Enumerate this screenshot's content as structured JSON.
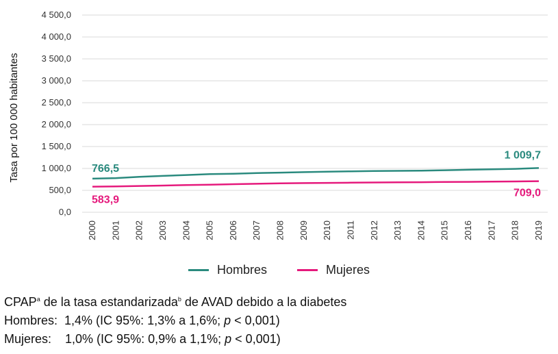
{
  "chart_data": {
    "type": "line",
    "ylabel": "Tasa por 100 000 habitantes",
    "xlabel": "",
    "ylim": [
      0,
      4500
    ],
    "yticks": [
      "0,0",
      "500,0",
      "1 000,0",
      "1 500,0",
      "2 000,0",
      "2 500,0",
      "3 000,0",
      "3 500,0",
      "4 000,0",
      "4 500,0"
    ],
    "categories": [
      "2000",
      "2001",
      "2002",
      "2003",
      "2004",
      "2005",
      "2006",
      "2007",
      "2008",
      "2009",
      "2010",
      "2011",
      "2012",
      "2013",
      "2014",
      "2015",
      "2016",
      "2017",
      "2018",
      "2019"
    ],
    "grid": "horizontal",
    "legend_position": "bottom",
    "series": [
      {
        "name": "Hombres",
        "color": "#2a8a7e",
        "values": [
          766.5,
          780,
          810,
          830,
          850,
          870,
          880,
          895,
          905,
          915,
          925,
          935,
          940,
          945,
          950,
          960,
          970,
          980,
          990,
          1009.7
        ],
        "start_label": "766,5",
        "end_label": "1 009,7"
      },
      {
        "name": "Mujeres",
        "color": "#e5197c",
        "values": [
          583.9,
          590,
          600,
          610,
          620,
          630,
          640,
          650,
          660,
          665,
          670,
          675,
          680,
          683,
          686,
          690,
          694,
          698,
          703,
          709.0
        ],
        "start_label": "583,9",
        "end_label": "709,0"
      }
    ]
  },
  "note": {
    "line1_a": "CPAP",
    "line1_sup_a": "a",
    "line1_b": " de la tasa estandarizada",
    "line1_sup_b": "b",
    "line1_c": " de AVAD debido a la diabetes",
    "hombres_label": "Hombres:  ",
    "hombres_a": "1,4% (IC 95%: 1,3% a 1,6%; ",
    "p": "p",
    "hombres_b": " < 0,001)",
    "mujeres_label": "Mujeres:    ",
    "mujeres_a": "1,0% (IC 95%: 0,9% a 1,1%; ",
    "mujeres_b": " < 0,001)"
  }
}
